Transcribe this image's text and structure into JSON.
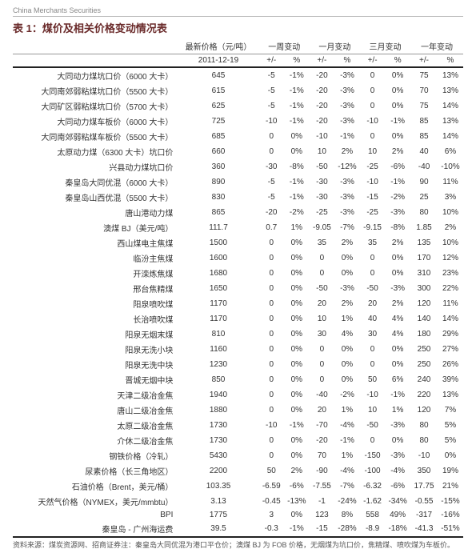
{
  "logo_text": "China Merchants Securities",
  "title": "表 1：煤价及相关价格变动情况表",
  "headers": {
    "price_label": "最新价格（元/吨）",
    "col_groups": [
      "一周变动",
      "一月变动",
      "三月变动",
      "一年变动"
    ],
    "date": "2011-12-19",
    "delta": "+/-",
    "pct": "%"
  },
  "rows": [
    {
      "label": "大同动力煤坑口价（6000 大卡）",
      "price": "645",
      "d": [
        [
          "-5",
          "-1%"
        ],
        [
          "-20",
          "-3%"
        ],
        [
          "0",
          "0%"
        ],
        [
          "75",
          "13%"
        ]
      ]
    },
    {
      "label": "大同南郊弱粘煤坑口价（5500 大卡）",
      "price": "615",
      "d": [
        [
          "-5",
          "-1%"
        ],
        [
          "-20",
          "-3%"
        ],
        [
          "0",
          "0%"
        ],
        [
          "70",
          "13%"
        ]
      ]
    },
    {
      "label": "大同矿区弱粘煤坑口价（5700 大卡）",
      "price": "625",
      "d": [
        [
          "-5",
          "-1%"
        ],
        [
          "-20",
          "-3%"
        ],
        [
          "0",
          "0%"
        ],
        [
          "75",
          "14%"
        ]
      ]
    },
    {
      "label": "大同动力煤车板价（6000 大卡）",
      "price": "725",
      "d": [
        [
          "-10",
          "-1%"
        ],
        [
          "-20",
          "-3%"
        ],
        [
          "-10",
          "-1%"
        ],
        [
          "85",
          "13%"
        ]
      ]
    },
    {
      "label": "大同南郊弱粘煤车板价（5500 大卡）",
      "price": "685",
      "d": [
        [
          "0",
          "0%"
        ],
        [
          "-10",
          "-1%"
        ],
        [
          "0",
          "0%"
        ],
        [
          "85",
          "14%"
        ]
      ]
    },
    {
      "label": "太原动力煤（6300 大卡）坑口价",
      "price": "660",
      "d": [
        [
          "0",
          "0%"
        ],
        [
          "10",
          "2%"
        ],
        [
          "10",
          "2%"
        ],
        [
          "40",
          "6%"
        ]
      ]
    },
    {
      "label": "兴县动力煤坑口价",
      "price": "360",
      "d": [
        [
          "-30",
          "-8%"
        ],
        [
          "-50",
          "-12%"
        ],
        [
          "-25",
          "-6%"
        ],
        [
          "-40",
          "-10%"
        ]
      ]
    },
    {
      "label": "秦皇岛大同优混（6000 大卡）",
      "price": "890",
      "d": [
        [
          "-5",
          "-1%"
        ],
        [
          "-30",
          "-3%"
        ],
        [
          "-10",
          "-1%"
        ],
        [
          "90",
          "11%"
        ]
      ]
    },
    {
      "label": "秦皇岛山西优混（5500 大卡）",
      "price": "830",
      "d": [
        [
          "-5",
          "-1%"
        ],
        [
          "-30",
          "-3%"
        ],
        [
          "-15",
          "-2%"
        ],
        [
          "25",
          "3%"
        ]
      ]
    },
    {
      "label": "唐山港动力煤",
      "price": "865",
      "d": [
        [
          "-20",
          "-2%"
        ],
        [
          "-25",
          "-3%"
        ],
        [
          "-25",
          "-3%"
        ],
        [
          "80",
          "10%"
        ]
      ]
    },
    {
      "label": "澳煤 BJ（美元/吨）",
      "price": "111.7",
      "d": [
        [
          "0.7",
          "1%"
        ],
        [
          "-9.05",
          "-7%"
        ],
        [
          "-9.15",
          "-8%"
        ],
        [
          "1.85",
          "2%"
        ]
      ]
    },
    {
      "label": "西山煤电主焦煤",
      "price": "1500",
      "d": [
        [
          "0",
          "0%"
        ],
        [
          "35",
          "2%"
        ],
        [
          "35",
          "2%"
        ],
        [
          "135",
          "10%"
        ]
      ]
    },
    {
      "label": "临汾主焦煤",
      "price": "1600",
      "d": [
        [
          "0",
          "0%"
        ],
        [
          "0",
          "0%"
        ],
        [
          "0",
          "0%"
        ],
        [
          "170",
          "12%"
        ]
      ]
    },
    {
      "label": "开滦炼焦煤",
      "price": "1680",
      "d": [
        [
          "0",
          "0%"
        ],
        [
          "0",
          "0%"
        ],
        [
          "0",
          "0%"
        ],
        [
          "310",
          "23%"
        ]
      ]
    },
    {
      "label": "邢台焦精煤",
      "price": "1650",
      "d": [
        [
          "0",
          "0%"
        ],
        [
          "-50",
          "-3%"
        ],
        [
          "-50",
          "-3%"
        ],
        [
          "300",
          "22%"
        ]
      ]
    },
    {
      "label": "阳泉喷吹煤",
      "price": "1170",
      "d": [
        [
          "0",
          "0%"
        ],
        [
          "20",
          "2%"
        ],
        [
          "20",
          "2%"
        ],
        [
          "120",
          "11%"
        ]
      ]
    },
    {
      "label": "长治喷吹煤",
      "price": "1170",
      "d": [
        [
          "0",
          "0%"
        ],
        [
          "10",
          "1%"
        ],
        [
          "40",
          "4%"
        ],
        [
          "140",
          "14%"
        ]
      ]
    },
    {
      "label": "阳泉无烟末煤",
      "price": "810",
      "d": [
        [
          "0",
          "0%"
        ],
        [
          "30",
          "4%"
        ],
        [
          "30",
          "4%"
        ],
        [
          "180",
          "29%"
        ]
      ]
    },
    {
      "label": "阳泉无洗小块",
      "price": "1160",
      "d": [
        [
          "0",
          "0%"
        ],
        [
          "0",
          "0%"
        ],
        [
          "0",
          "0%"
        ],
        [
          "250",
          "27%"
        ]
      ]
    },
    {
      "label": "阳泉无洗中块",
      "price": "1230",
      "d": [
        [
          "0",
          "0%"
        ],
        [
          "0",
          "0%"
        ],
        [
          "0",
          "0%"
        ],
        [
          "250",
          "26%"
        ]
      ]
    },
    {
      "label": "晋城无烟中块",
      "price": "850",
      "d": [
        [
          "0",
          "0%"
        ],
        [
          "0",
          "0%"
        ],
        [
          "50",
          "6%"
        ],
        [
          "240",
          "39%"
        ]
      ]
    },
    {
      "label": "天津二级冶金焦",
      "price": "1940",
      "d": [
        [
          "0",
          "0%"
        ],
        [
          "-40",
          "-2%"
        ],
        [
          "-10",
          "-1%"
        ],
        [
          "220",
          "13%"
        ]
      ]
    },
    {
      "label": "唐山二级冶金焦",
      "price": "1880",
      "d": [
        [
          "0",
          "0%"
        ],
        [
          "20",
          "1%"
        ],
        [
          "10",
          "1%"
        ],
        [
          "120",
          "7%"
        ]
      ]
    },
    {
      "label": "太原二级冶金焦",
      "price": "1730",
      "d": [
        [
          "-10",
          "-1%"
        ],
        [
          "-70",
          "-4%"
        ],
        [
          "-50",
          "-3%"
        ],
        [
          "80",
          "5%"
        ]
      ]
    },
    {
      "label": "介休二级冶金焦",
      "price": "1730",
      "d": [
        [
          "0",
          "0%"
        ],
        [
          "-20",
          "-1%"
        ],
        [
          "0",
          "0%"
        ],
        [
          "80",
          "5%"
        ]
      ]
    },
    {
      "label": "钢铁价格（冷轧）",
      "price": "5430",
      "d": [
        [
          "0",
          "0%"
        ],
        [
          "70",
          "1%"
        ],
        [
          "-150",
          "-3%"
        ],
        [
          "-10",
          "0%"
        ]
      ]
    },
    {
      "label": "尿素价格（长三角地区）",
      "price": "2200",
      "d": [
        [
          "50",
          "2%"
        ],
        [
          "-90",
          "-4%"
        ],
        [
          "-100",
          "-4%"
        ],
        [
          "350",
          "19%"
        ]
      ]
    },
    {
      "label": "石油价格（Brent，美元/桶）",
      "price": "103.35",
      "d": [
        [
          "-6.59",
          "-6%"
        ],
        [
          "-7.55",
          "-7%"
        ],
        [
          "-6.32",
          "-6%"
        ],
        [
          "17.75",
          "21%"
        ]
      ]
    },
    {
      "label": "天然气价格（NYMEX，美元/mmbtu）",
      "price": "3.13",
      "d": [
        [
          "-0.45",
          "-13%"
        ],
        [
          "-1",
          "-24%"
        ],
        [
          "-1.62",
          "-34%"
        ],
        [
          "-0.55",
          "-15%"
        ]
      ]
    },
    {
      "label": "BPI",
      "price": "1775",
      "d": [
        [
          "3",
          "0%"
        ],
        [
          "123",
          "8%"
        ],
        [
          "558",
          "49%"
        ],
        [
          "-317",
          "-16%"
        ]
      ]
    },
    {
      "label": "秦皇岛 - 广州海运费",
      "price": "39.5",
      "d": [
        [
          "-0.3",
          "-1%"
        ],
        [
          "-15",
          "-28%"
        ],
        [
          "-8.9",
          "-18%"
        ],
        [
          "-41.3",
          "-51%"
        ]
      ]
    }
  ],
  "footnote": "资料来源：煤炭资源网、招商证券注：秦皇岛大同优混为港口平仓价；澳煤 BJ 为 FOB 价格，无烟煤为坑口价，焦精煤、喷吹煤为车板价。"
}
